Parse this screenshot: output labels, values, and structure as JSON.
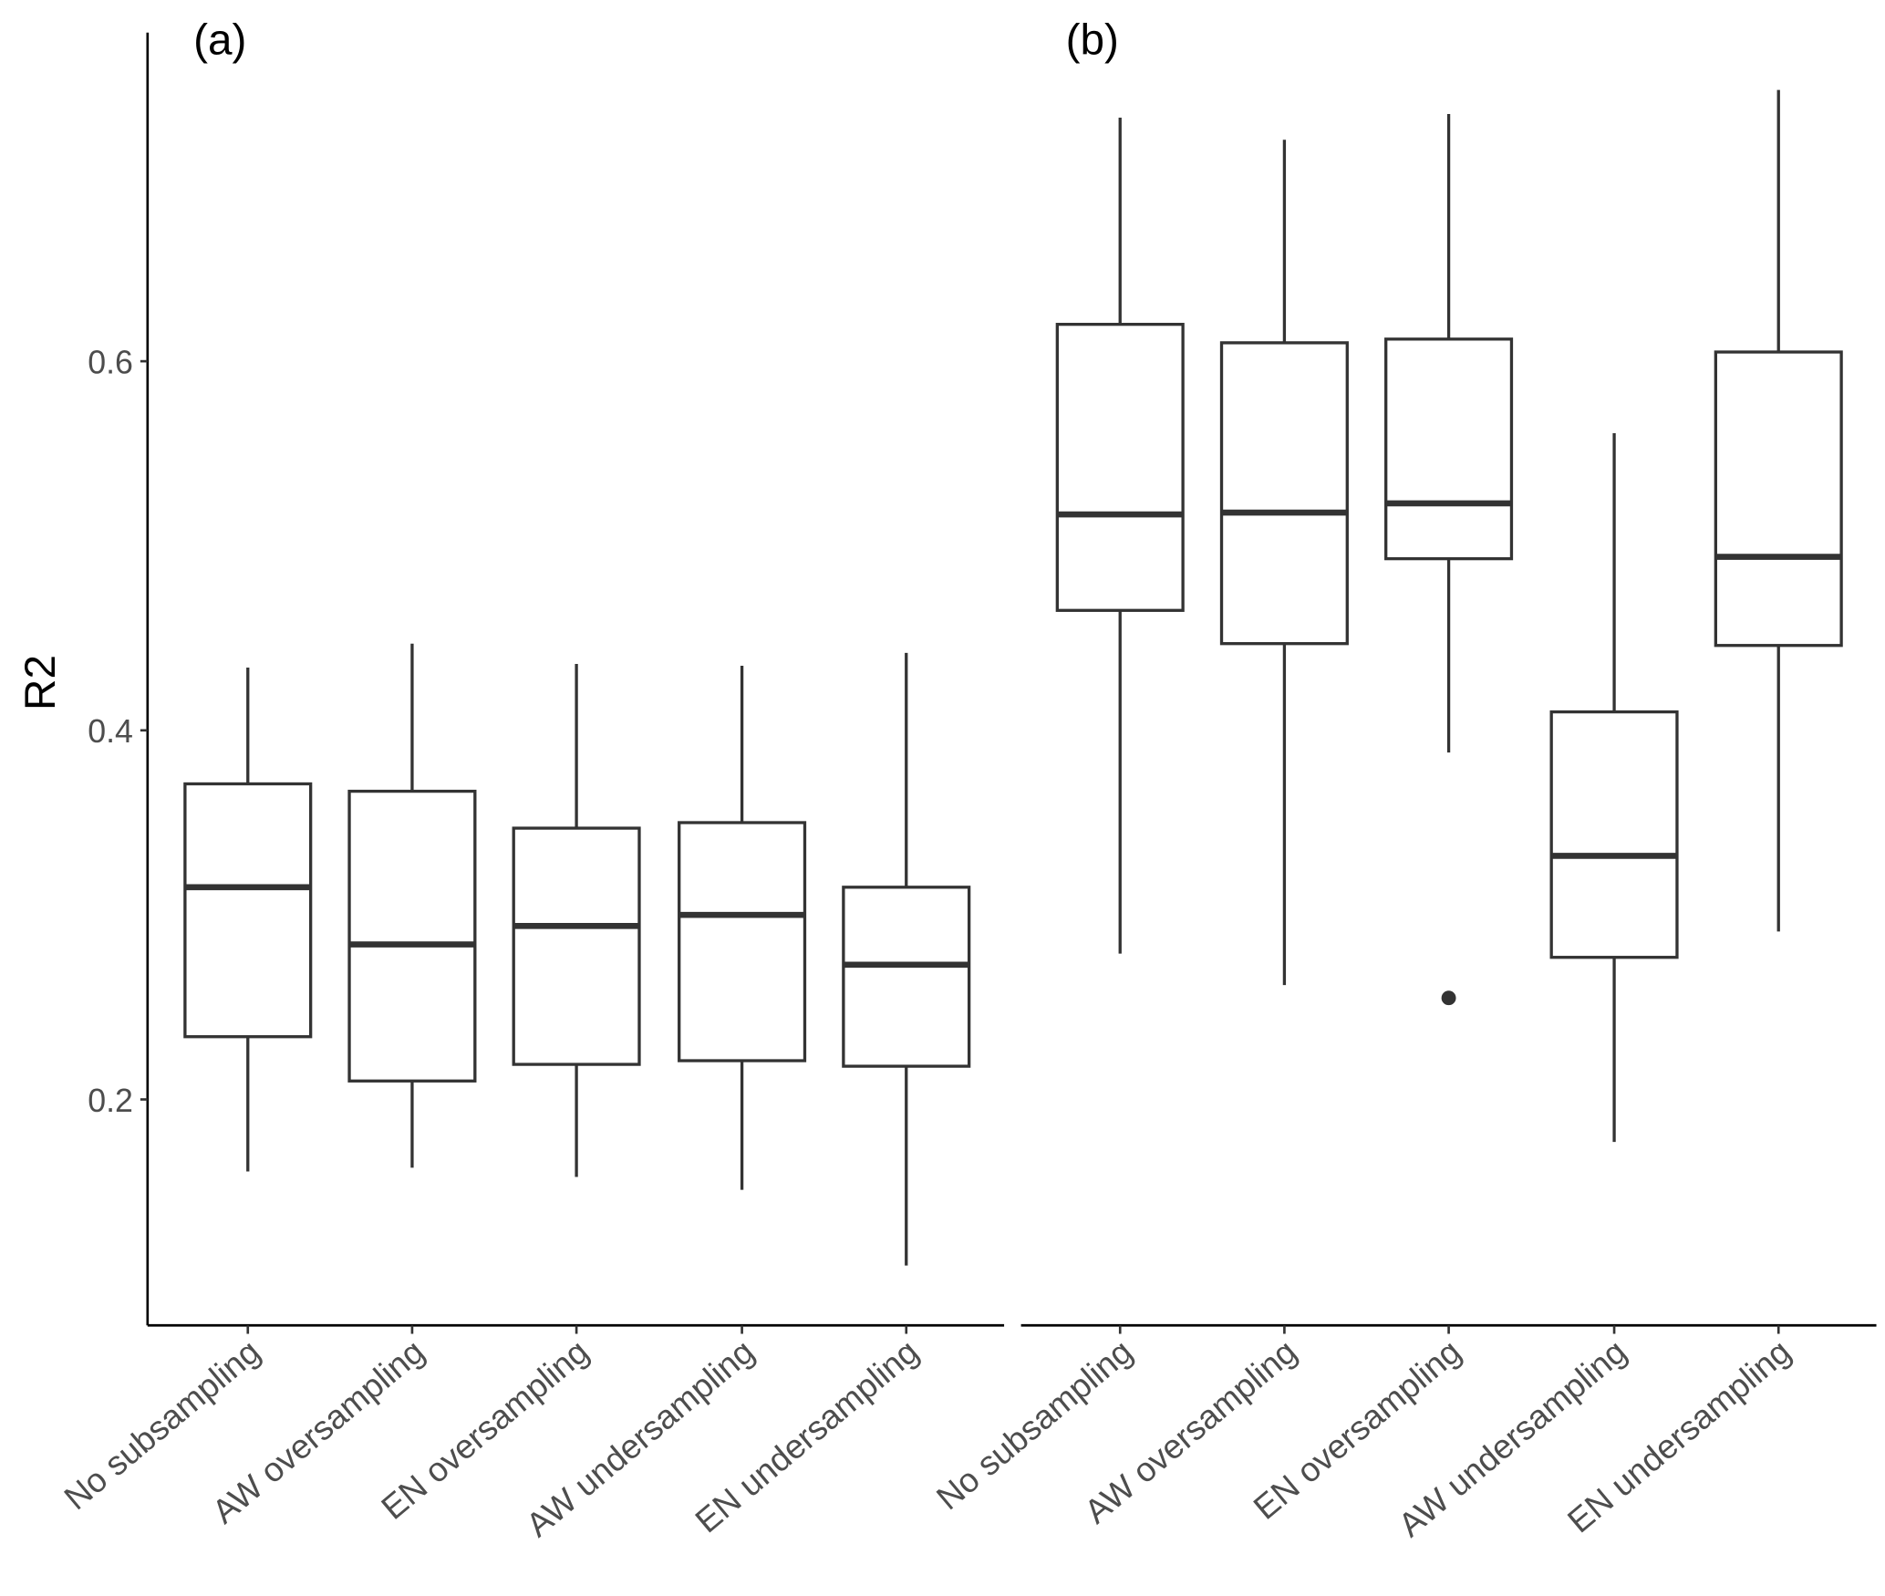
{
  "chart_data": {
    "type": "boxplot",
    "ylabel": "R2",
    "xlabel": "",
    "ylim": [
      0.078,
      0.778
    ],
    "yticks": [
      0.2,
      0.4,
      0.6
    ],
    "ytick_labels": [
      "0.2",
      "0.4",
      "0.6"
    ],
    "grid": false,
    "categories": [
      "No subsampling",
      "AW oversampling",
      "EN oversampling",
      "AW undersampling",
      "EN undersampling"
    ],
    "panels": [
      {
        "label": "(a)",
        "boxes": [
          {
            "category": "No subsampling",
            "min": 0.161,
            "q1": 0.234,
            "median": 0.315,
            "q3": 0.371,
            "max": 0.434,
            "outliers": []
          },
          {
            "category": "AW oversampling",
            "min": 0.163,
            "q1": 0.21,
            "median": 0.284,
            "q3": 0.367,
            "max": 0.447,
            "outliers": []
          },
          {
            "category": "EN oversampling",
            "min": 0.158,
            "q1": 0.219,
            "median": 0.294,
            "q3": 0.347,
            "max": 0.436,
            "outliers": []
          },
          {
            "category": "AW undersampling",
            "min": 0.151,
            "q1": 0.221,
            "median": 0.3,
            "q3": 0.35,
            "max": 0.435,
            "outliers": []
          },
          {
            "category": "EN undersampling",
            "min": 0.11,
            "q1": 0.218,
            "median": 0.273,
            "q3": 0.315,
            "max": 0.442,
            "outliers": []
          }
        ]
      },
      {
        "label": "(b)",
        "boxes": [
          {
            "category": "No subsampling",
            "min": 0.279,
            "q1": 0.465,
            "median": 0.517,
            "q3": 0.62,
            "max": 0.732,
            "outliers": []
          },
          {
            "category": "AW oversampling",
            "min": 0.262,
            "q1": 0.447,
            "median": 0.518,
            "q3": 0.61,
            "max": 0.72,
            "outliers": []
          },
          {
            "category": "EN oversampling",
            "min": 0.388,
            "q1": 0.493,
            "median": 0.523,
            "q3": 0.612,
            "max": 0.734,
            "outliers": [
              0.255
            ]
          },
          {
            "category": "AW undersampling",
            "min": 0.177,
            "q1": 0.277,
            "median": 0.332,
            "q3": 0.41,
            "max": 0.561,
            "outliers": []
          },
          {
            "category": "EN undersampling",
            "min": 0.291,
            "q1": 0.446,
            "median": 0.494,
            "q3": 0.605,
            "max": 0.747,
            "outliers": []
          }
        ]
      }
    ]
  }
}
